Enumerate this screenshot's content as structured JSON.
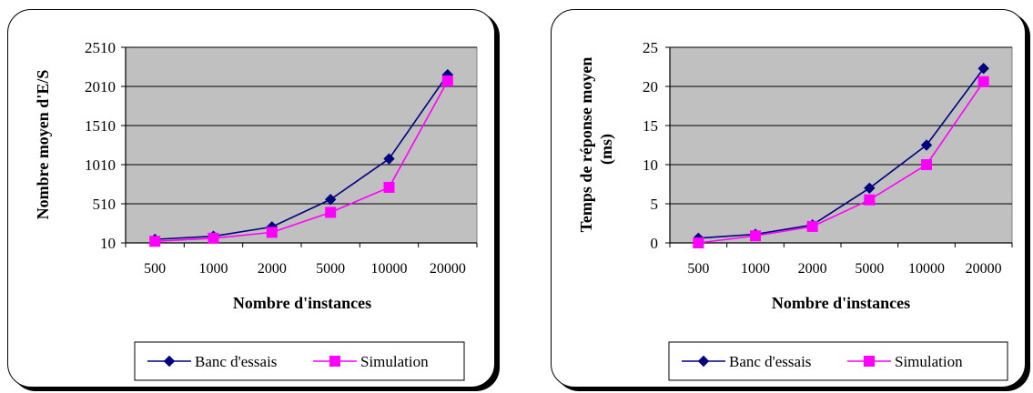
{
  "colors": {
    "plot_bg": "#c0c0c0",
    "banc": "#000080",
    "simulation": "#ff00ff"
  },
  "chart_data": [
    {
      "type": "line",
      "categories": [
        "500",
        "1000",
        "2000",
        "5000",
        "10000",
        "20000"
      ],
      "xlabel": "Nombre d'instances",
      "ylabel": "Nombre moyen d'E/S",
      "ylim": [
        10,
        2510
      ],
      "yticks": [
        "10",
        "510",
        "1010",
        "1510",
        "2010",
        "2510"
      ],
      "grid": true,
      "legend": "bottom",
      "series": [
        {
          "name": "Banc d'essais",
          "values": [
            55,
            95,
            215,
            565,
            1085,
            2160
          ],
          "marker": "diamond"
        },
        {
          "name": "Simulation",
          "values": [
            30,
            70,
            145,
            400,
            720,
            2080
          ],
          "marker": "square"
        }
      ]
    },
    {
      "type": "line",
      "categories": [
        "500",
        "1000",
        "2000",
        "5000",
        "10000",
        "20000"
      ],
      "xlabel": "Nombre d'instances",
      "ylabel": [
        "Temps de réponse moyen",
        "(ms)"
      ],
      "ylim": [
        0,
        25
      ],
      "yticks": [
        "0",
        "5",
        "10",
        "15",
        "20",
        "25"
      ],
      "grid": true,
      "legend": "bottom",
      "series": [
        {
          "name": "Banc d'essais",
          "values": [
            0.6,
            1.1,
            2.3,
            7.0,
            12.5,
            22.3
          ],
          "marker": "diamond"
        },
        {
          "name": "Simulation",
          "values": [
            0.0,
            0.9,
            2.1,
            5.5,
            10.0,
            20.6
          ],
          "marker": "square"
        }
      ]
    }
  ]
}
